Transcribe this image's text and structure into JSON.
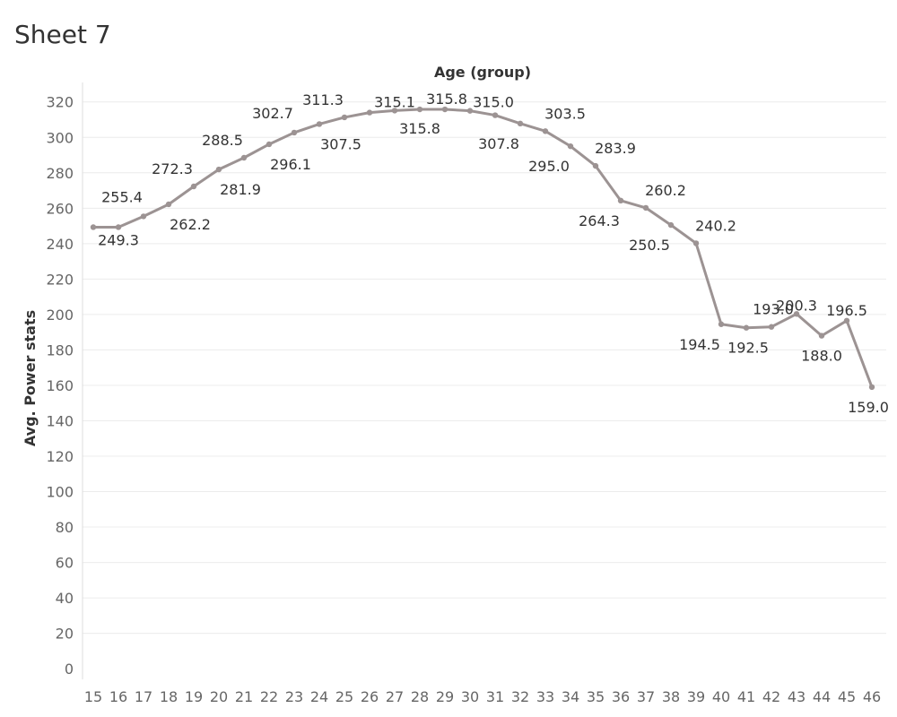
{
  "page": {
    "title": "Sheet 7"
  },
  "chart_data": {
    "type": "line",
    "title": "",
    "xlabel": "Age (group)",
    "ylabel": "Avg. Power stats",
    "x": [
      15,
      16,
      17,
      18,
      19,
      20,
      21,
      22,
      23,
      24,
      25,
      26,
      27,
      28,
      29,
      30,
      31,
      32,
      33,
      34,
      35,
      36,
      37,
      38,
      39,
      40,
      41,
      42,
      43,
      44,
      45,
      46
    ],
    "series": [
      {
        "values": [
          249.3,
          249.3,
          255.4,
          262.2,
          272.3,
          281.9,
          288.5,
          296.1,
          302.7,
          307.5,
          311.3,
          314.0,
          315.1,
          315.8,
          315.8,
          315.0,
          312.5,
          307.8,
          303.5,
          295.0,
          283.9,
          264.3,
          260.2,
          250.5,
          240.2,
          194.5,
          192.5,
          193.0,
          200.3,
          188.0,
          196.5,
          159.0
        ],
        "color": "#9c9393"
      }
    ],
    "data_labels": [
      {
        "x": 16,
        "text": "249.3"
      },
      {
        "x": 17,
        "text": "255.4"
      },
      {
        "x": 18,
        "text": "262.2"
      },
      {
        "x": 19,
        "text": "272.3"
      },
      {
        "x": 20,
        "text": "281.9"
      },
      {
        "x": 21,
        "text": "288.5"
      },
      {
        "x": 22,
        "text": "296.1"
      },
      {
        "x": 23,
        "text": "302.7"
      },
      {
        "x": 24,
        "text": "307.5"
      },
      {
        "x": 25,
        "text": "311.3"
      },
      {
        "x": 27,
        "text": "315.1"
      },
      {
        "x": 28,
        "text": "315.8"
      },
      {
        "x": 29,
        "text": "315.8"
      },
      {
        "x": 30,
        "text": "315.0"
      },
      {
        "x": 32,
        "text": "307.8"
      },
      {
        "x": 33,
        "text": "303.5"
      },
      {
        "x": 34,
        "text": "295.0"
      },
      {
        "x": 35,
        "text": "283.9"
      },
      {
        "x": 36,
        "text": "264.3"
      },
      {
        "x": 37,
        "text": "260.2"
      },
      {
        "x": 38,
        "text": "250.5"
      },
      {
        "x": 39,
        "text": "240.2"
      },
      {
        "x": 40,
        "text": "194.5"
      },
      {
        "x": 41,
        "text": "192.5"
      },
      {
        "x": 42,
        "text": "193.0"
      },
      {
        "x": 43,
        "text": "200.3"
      },
      {
        "x": 44,
        "text": "188.0"
      },
      {
        "x": 45,
        "text": "196.5"
      },
      {
        "x": 46,
        "text": "159.0"
      }
    ],
    "yticks": [
      0,
      20,
      40,
      60,
      80,
      100,
      120,
      140,
      160,
      180,
      200,
      220,
      240,
      260,
      280,
      300,
      320
    ],
    "ylim": [
      0,
      320
    ],
    "grid": true,
    "legend": "none"
  }
}
